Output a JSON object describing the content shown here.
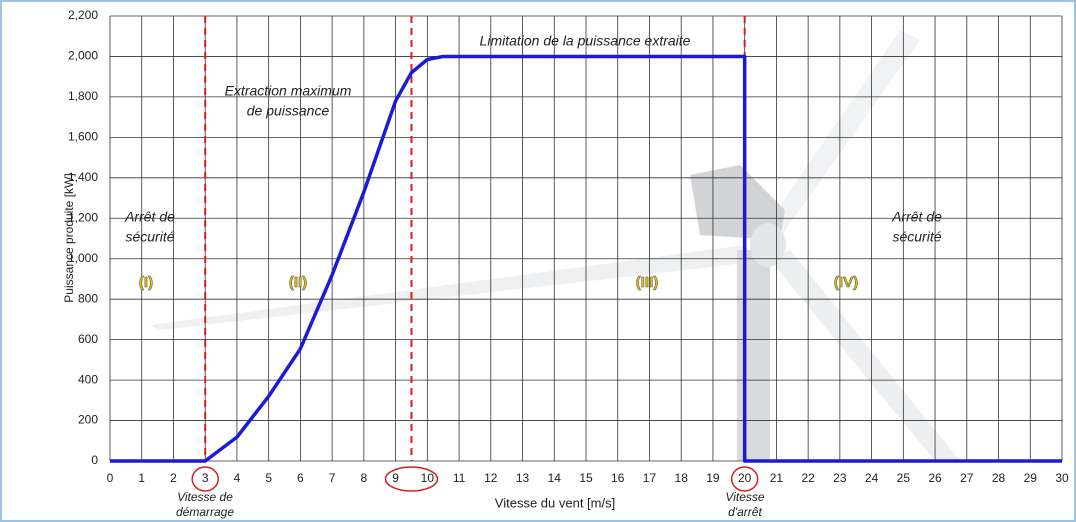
{
  "chart_data": {
    "type": "line",
    "xlabel": "Vitesse du vent [m/s]",
    "ylabel": "Puissance produite [kW]",
    "xlim": [
      0,
      30
    ],
    "ylim": [
      0,
      2200
    ],
    "xticks": [
      0,
      1,
      2,
      3,
      4,
      5,
      6,
      7,
      8,
      9,
      10,
      11,
      12,
      13,
      14,
      15,
      16,
      17,
      18,
      19,
      20,
      21,
      22,
      23,
      24,
      25,
      26,
      27,
      28,
      29,
      30
    ],
    "yticks": [
      0,
      200,
      400,
      600,
      800,
      {
        "value": 1000,
        "label": "1,000"
      },
      {
        "value": 1200,
        "label": "1,200"
      },
      {
        "value": 1400,
        "label": "1,400"
      },
      {
        "value": 1600,
        "label": "1,600"
      },
      {
        "value": 1800,
        "label": "1,800"
      },
      {
        "value": 2000,
        "label": "2,000"
      },
      {
        "value": 2200,
        "label": "2,200"
      }
    ],
    "grid": true,
    "series": [
      {
        "color": "#1a1ad8",
        "x": [
          0,
          3,
          4,
          5,
          6,
          7,
          8,
          9,
          9.5,
          10,
          10.5,
          11,
          20,
          20,
          30
        ],
        "values": [
          0,
          0,
          118,
          320,
          555,
          920,
          1330,
          1780,
          1920,
          1985,
          2000,
          2000,
          2000,
          0,
          0
        ]
      }
    ],
    "vlines": {
      "color": "#d42020",
      "values": [
        3,
        9.5,
        20
      ]
    },
    "annotations": [
      [
        "Limitation de la puissance extraite"
      ],
      [
        "Extraction maximum",
        "de puissance"
      ],
      [
        "Arrêt de",
        "sécurité"
      ],
      [
        "Arrêt de",
        "sécurité"
      ],
      [
        "(I)"
      ],
      [
        "(II)"
      ],
      [
        "(III)"
      ],
      [
        "(IV)"
      ],
      [
        "Vitesse de",
        "démarrage"
      ],
      [
        "Vitesse",
        "d'arrêt"
      ]
    ]
  }
}
